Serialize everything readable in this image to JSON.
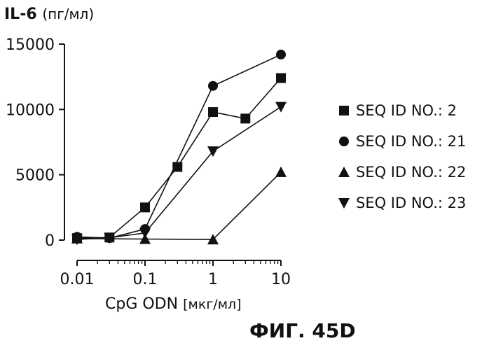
{
  "chart_data": {
    "type": "line",
    "y_title_bold": "IL-6",
    "y_title_unit": "(пг/мл)",
    "x_title_main": "CpG ODN",
    "x_title_unit": "[мкг/мл]",
    "figure_label": "ФИГ. 45D",
    "xscale": "log",
    "xlim": [
      0.01,
      10
    ],
    "ylim": [
      0,
      15000
    ],
    "x_ticks": [
      0.01,
      0.1,
      1,
      10
    ],
    "x_tick_labels": [
      "0.01",
      "0.1",
      "1",
      "10"
    ],
    "y_ticks": [
      0,
      5000,
      10000,
      15000
    ],
    "y_tick_labels": [
      "0",
      "5000",
      "10000",
      "15000"
    ],
    "grid": false,
    "legend_position": "right",
    "series": [
      {
        "name": "SEQ ID NO.: 2",
        "marker": "square",
        "x": [
          0.01,
          0.03,
          0.1,
          0.3,
          1,
          3,
          10
        ],
        "y": [
          150,
          200,
          2500,
          5600,
          9800,
          9300,
          12400
        ]
      },
      {
        "name": "SEQ ID NO.: 21",
        "marker": "circle",
        "x": [
          0.01,
          0.03,
          0.1,
          1,
          10
        ],
        "y": [
          250,
          150,
          850,
          11800,
          14200
        ]
      },
      {
        "name": "SEQ ID NO.: 22",
        "marker": "triangle-up",
        "x": [
          0.01,
          0.1,
          1,
          10
        ],
        "y": [
          120,
          80,
          50,
          5200
        ]
      },
      {
        "name": "SEQ ID NO.: 23",
        "marker": "triangle-down",
        "x": [
          0.01,
          0.03,
          0.1,
          1,
          10
        ],
        "y": [
          50,
          180,
          550,
          6800,
          10200
        ]
      }
    ]
  }
}
